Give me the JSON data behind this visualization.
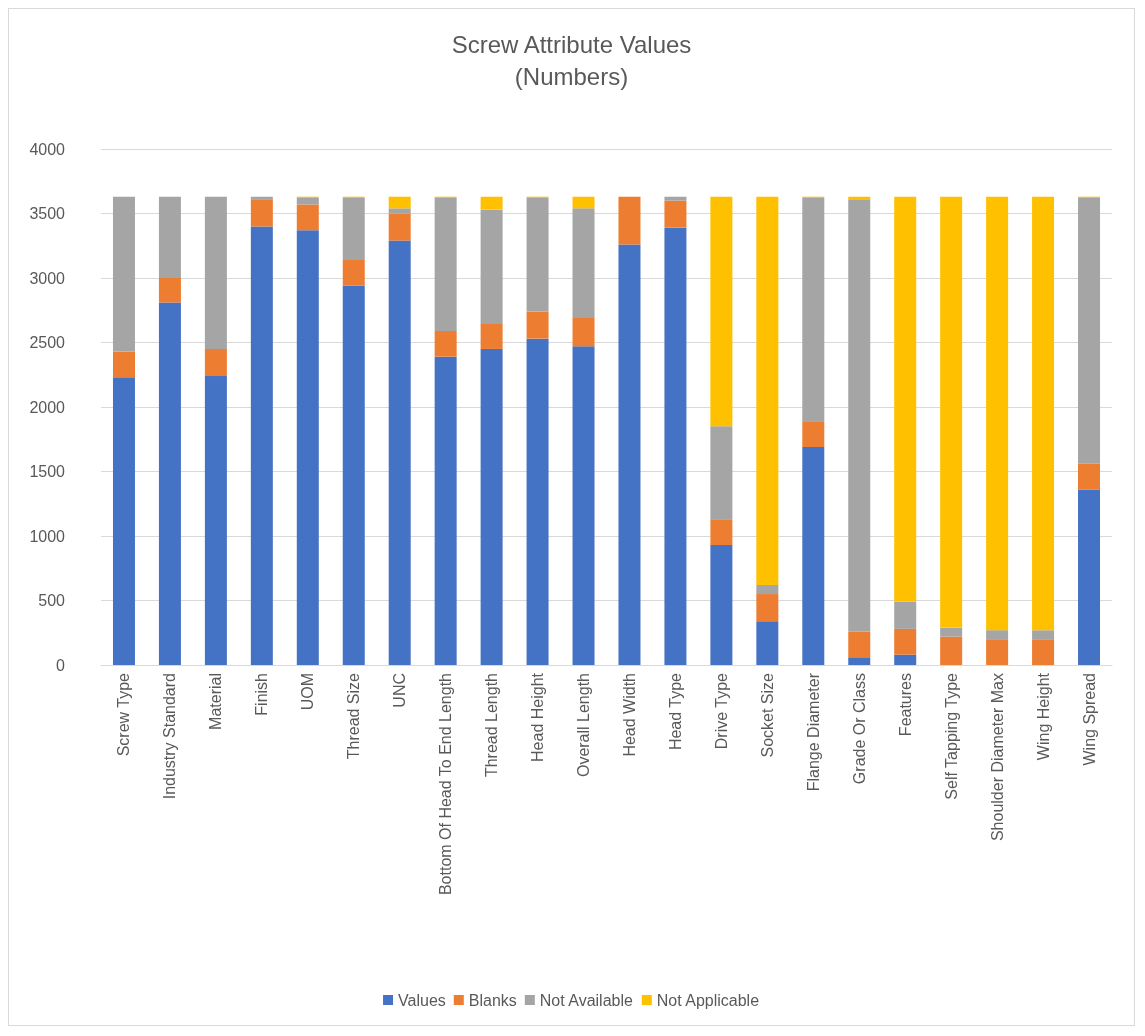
{
  "chart_data": {
    "type": "bar",
    "title": "Screw Attribute Values",
    "subtitle": "(Numbers)",
    "stacked": true,
    "categories": [
      "Screw Type",
      "Industry Standard",
      "Material",
      "Finish",
      "UOM",
      "Thread Size",
      "UNC",
      "Bottom Of Head To End Length",
      "Thread Length",
      "Head Height",
      "Overall Length",
      "Head Width",
      "Head Type",
      "Drive Type",
      "Socket Size",
      "Flange Diameter",
      "Grade Or Class",
      "Features",
      "Self Tapping Type",
      "Shoulder Diameter Max",
      "Wing Height",
      "Wing Spread"
    ],
    "series": [
      {
        "name": "Values",
        "color": "#4472c4",
        "values": [
          2230,
          2810,
          2240,
          3400,
          3370,
          2940,
          3290,
          2390,
          2450,
          2530,
          2470,
          3260,
          3390,
          930,
          340,
          1690,
          60,
          80,
          0,
          0,
          0,
          1360
        ]
      },
      {
        "name": "Blanks",
        "color": "#ed7d31",
        "values": [
          200,
          190,
          210,
          210,
          200,
          200,
          210,
          200,
          200,
          210,
          220,
          370,
          210,
          200,
          210,
          200,
          200,
          200,
          220,
          200,
          200,
          200
        ]
      },
      {
        "name": "Not Available",
        "color": "#a5a5a5",
        "values": [
          1200,
          630,
          1180,
          20,
          50,
          480,
          40,
          1030,
          880,
          880,
          850,
          0,
          30,
          720,
          70,
          1730,
          3350,
          210,
          70,
          70,
          70,
          2060
        ]
      },
      {
        "name": "Not Applicable",
        "color": "#ffc000",
        "values": [
          0,
          0,
          0,
          0,
          10,
          10,
          90,
          10,
          100,
          10,
          90,
          0,
          0,
          1780,
          3010,
          10,
          20,
          3140,
          3340,
          3360,
          3360,
          10
        ]
      }
    ],
    "ylim": [
      0,
      4000
    ],
    "yticks": [
      0,
      500,
      1000,
      1500,
      2000,
      2500,
      3000,
      3500,
      4000
    ],
    "grid": "y",
    "legend": "bottom"
  }
}
